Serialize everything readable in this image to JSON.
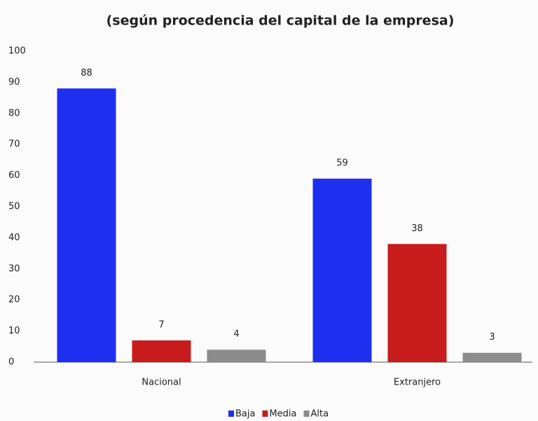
{
  "chart_data": {
    "type": "bar",
    "title": "(según procedencia del capital de la empresa)",
    "categories": [
      "Nacional",
      "Extranjero"
    ],
    "series": [
      {
        "name": "Baja",
        "color": "#1f2ff0",
        "values": [
          88,
          59
        ]
      },
      {
        "name": "Media",
        "color": "#c81c1c",
        "values": [
          7,
          38
        ]
      },
      {
        "name": "Alta",
        "color": "#8c8c8c",
        "values": [
          4,
          3
        ]
      }
    ],
    "ylim": [
      0,
      100
    ],
    "yticks": [
      0,
      10,
      20,
      30,
      40,
      50,
      60,
      70,
      80,
      90,
      100
    ],
    "grid": false,
    "legend": "bottom"
  }
}
